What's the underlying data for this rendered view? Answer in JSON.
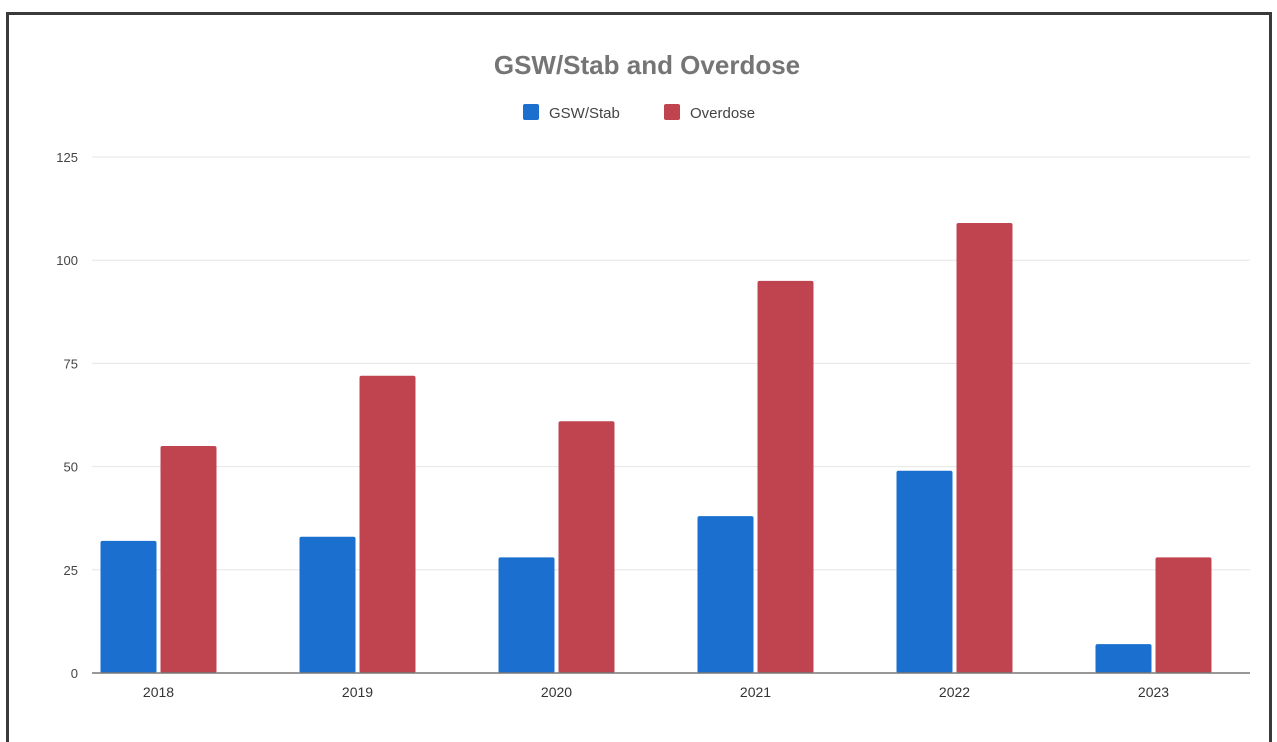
{
  "chart_data": {
    "type": "bar",
    "title": "GSW/Stab and Overdose",
    "xlabel": "",
    "ylabel": "",
    "categories": [
      "2018",
      "2019",
      "2020",
      "2021",
      "2022",
      "2023"
    ],
    "series": [
      {
        "name": "GSW/Stab",
        "color": "#1a6fcf",
        "values": [
          32,
          33,
          28,
          38,
          49,
          7
        ]
      },
      {
        "name": "Overdose",
        "color": "#bf4450",
        "values": [
          55,
          72,
          61,
          95,
          109,
          28
        ]
      }
    ],
    "yticks": [
      "0",
      "25",
      "50",
      "75",
      "100",
      "125"
    ],
    "ylim": [
      0,
      125
    ],
    "grid": true,
    "legend_position": "top-center"
  }
}
